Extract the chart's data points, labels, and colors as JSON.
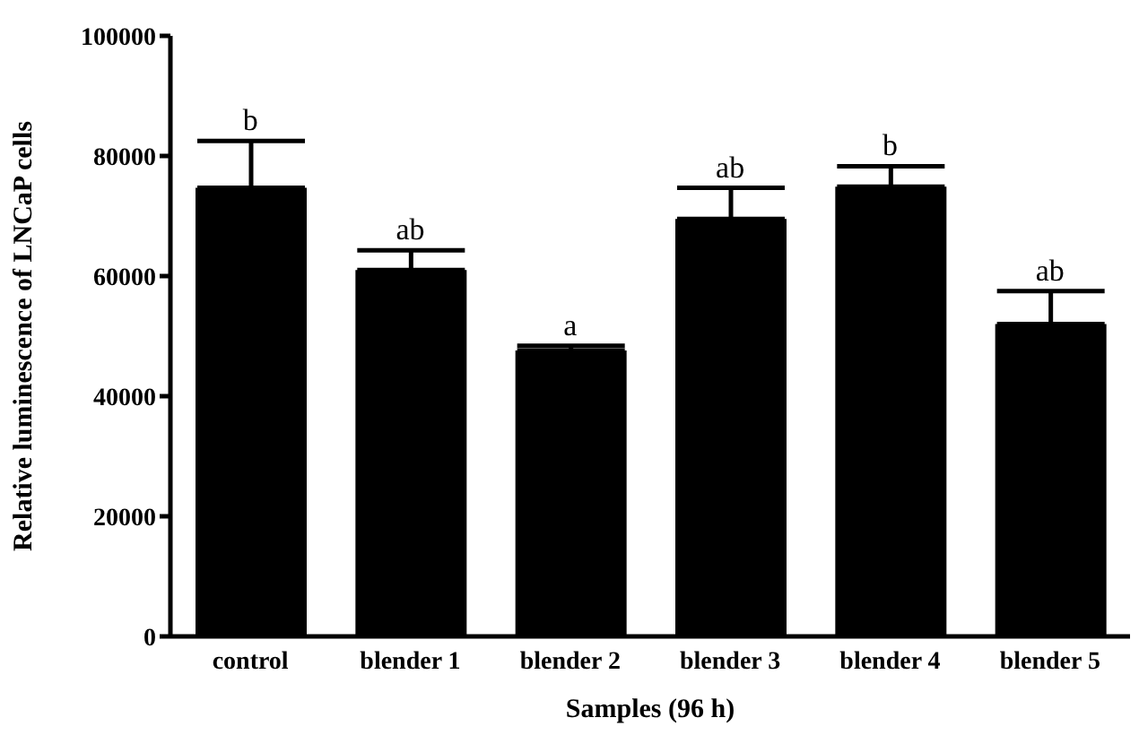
{
  "chart_data": {
    "type": "bar",
    "xlabel": "Samples (96 h)",
    "ylabel": "Relative luminescence of LNCaP cells",
    "categories": [
      "control",
      "blender 1",
      "blender 2",
      "blender 3",
      "blender 4",
      "blender 5"
    ],
    "values": [
      74700,
      61000,
      47600,
      69500,
      74900,
      52000
    ],
    "errors": [
      [
        74700,
        82500
      ],
      [
        61000,
        64300
      ],
      [
        47600,
        48400
      ],
      [
        69500,
        74700
      ],
      [
        74900,
        78300
      ],
      [
        52000,
        57500
      ]
    ],
    "color": "#000000",
    "ylim": [
      0,
      100000
    ],
    "yticks": [
      0,
      20000,
      40000,
      60000,
      80000,
      100000
    ],
    "grid": false,
    "legend": false,
    "annotations": [
      {
        "text": "b",
        "x": "control",
        "y": 82500
      },
      {
        "text": "ab",
        "x": "blender 1",
        "y": 64300
      },
      {
        "text": "a",
        "x": "blender 2",
        "y": 48400
      },
      {
        "text": "ab",
        "x": "blender 3",
        "y": 74700
      },
      {
        "text": "b",
        "x": "blender 4",
        "y": 78300
      },
      {
        "text": "ab",
        "x": "blender 5",
        "y": 57500
      }
    ]
  }
}
